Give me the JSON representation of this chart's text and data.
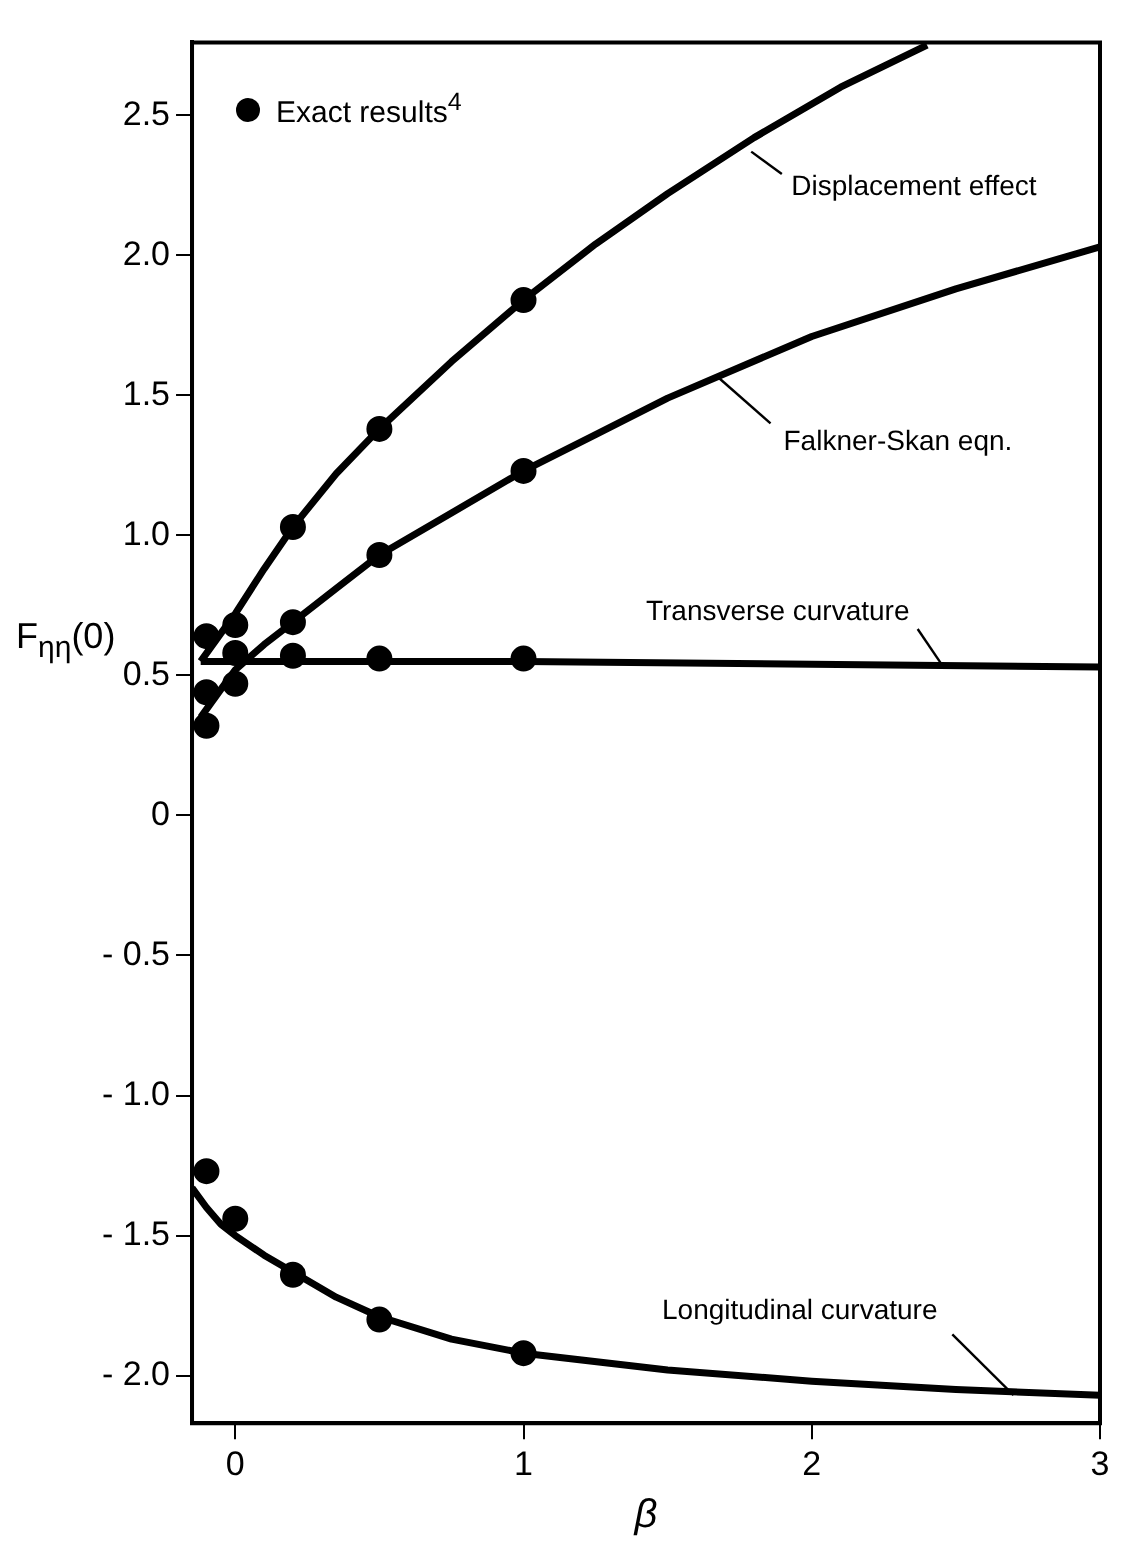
{
  "chart_data": {
    "type": "line",
    "xlabel": "β",
    "ylabel": "F$_{ηη}$(0)",
    "xlim": [
      -0.15,
      3
    ],
    "ylim": [
      -2.17,
      2.76
    ],
    "xticks": [
      0,
      1,
      2,
      3
    ],
    "yticks": [
      {
        "value": -2,
        "label": "- 2.0"
      },
      {
        "value": -1.5,
        "label": "- 1.5"
      },
      {
        "value": -1,
        "label": "- 1.0"
      },
      {
        "value": -0.5,
        "label": "- 0.5"
      },
      0,
      0.5,
      {
        "value": 1,
        "label": "1.0"
      },
      1.5,
      {
        "value": 2,
        "label": "2.0"
      },
      2.5
    ],
    "grid": false,
    "legend": "top left",
    "line_style": "solid",
    "series": [
      {
        "color": "#000000",
        "x": [
          -0.12,
          -0.05,
          0,
          0.1,
          0.2,
          0.35,
          0.5,
          0.75,
          1,
          1.25,
          1.5,
          1.8,
          2.1,
          2.4
        ],
        "values": [
          0.55,
          0.65,
          0.72,
          0.88,
          1.03,
          1.22,
          1.38,
          1.62,
          1.84,
          2.04,
          2.22,
          2.42,
          2.6,
          2.75
        ]
      },
      {
        "color": "#000000",
        "x": [
          -0.12,
          -0.05,
          0,
          0.1,
          0.2,
          0.35,
          0.5,
          0.75,
          1,
          1.25,
          1.5,
          2,
          2.5,
          3
        ],
        "values": [
          0.35,
          0.45,
          0.52,
          0.61,
          0.69,
          0.81,
          0.93,
          1.08,
          1.23,
          1.36,
          1.49,
          1.71,
          1.88,
          2.03
        ]
      },
      {
        "color": "#000000",
        "x": [
          -0.12,
          0,
          0.5,
          1,
          2,
          3
        ],
        "values": [
          0.55,
          0.55,
          0.55,
          0.55,
          0.54,
          0.53
        ]
      },
      {
        "color": "#000000",
        "x": [
          -0.15,
          -0.1,
          -0.05,
          0,
          0.1,
          0.2,
          0.35,
          0.5,
          0.75,
          1,
          1.5,
          2,
          2.5,
          3
        ],
        "values": [
          -1.33,
          -1.4,
          -1.46,
          -1.5,
          -1.57,
          -1.63,
          -1.72,
          -1.79,
          -1.87,
          -1.92,
          -1.98,
          -2.02,
          -2.05,
          -2.07
        ]
      },
      {
        "type": "scatter",
        "name": "Exact results$^{4}$",
        "color": "#000000",
        "marker": "circle",
        "x": [
          -0.1,
          -0.1,
          -0.1,
          0,
          0,
          0,
          0.2,
          0.2,
          0.2,
          0.5,
          0.5,
          0.5,
          1,
          1,
          1,
          -0.1,
          0,
          0.2,
          0.5,
          1
        ],
        "values": [
          0.64,
          0.44,
          0.32,
          0.68,
          0.58,
          0.47,
          1.03,
          0.69,
          0.57,
          1.38,
          0.93,
          0.56,
          1.84,
          1.23,
          0.56,
          -1.27,
          -1.44,
          -1.64,
          -1.8,
          -1.92
        ]
      }
    ],
    "annotations": [
      {
        "text": "Displacement effect",
        "x": 1.79,
        "y": 2.37
      },
      {
        "text": "Falkner-Skan eqn.",
        "x": 1.68,
        "y": 1.56
      },
      {
        "text": "Transverse curvature",
        "x": 2.45,
        "y": 0.54
      },
      {
        "text": "Longitudinal curvature",
        "x": 2.7,
        "y": -2.07
      }
    ]
  }
}
